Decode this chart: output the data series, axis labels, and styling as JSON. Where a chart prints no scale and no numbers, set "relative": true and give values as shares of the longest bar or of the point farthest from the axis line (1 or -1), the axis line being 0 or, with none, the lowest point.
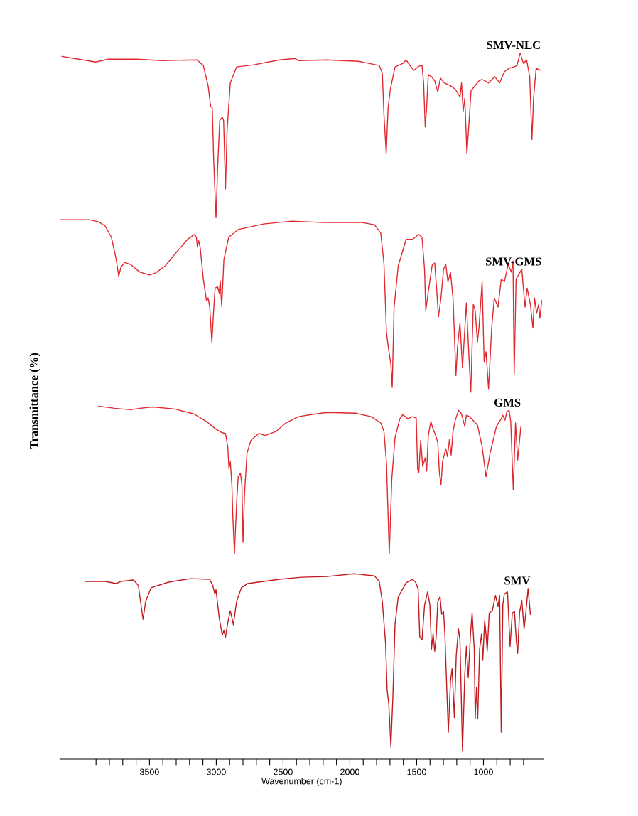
{
  "chart_data": {
    "type": "line",
    "relative": true,
    "xlabel": "Wavenumber (cm-1)",
    "ylabel": "Transmittance (%)",
    "xlim": [
      4170,
      550
    ],
    "xticks": [
      {
        "value": 3900,
        "label": null
      },
      {
        "value": 3800,
        "label": null
      },
      {
        "value": 3700,
        "label": null
      },
      {
        "value": 3600,
        "label": null
      },
      3500,
      {
        "value": 3400,
        "label": null
      },
      {
        "value": 3300,
        "label": null
      },
      {
        "value": 3200,
        "label": null
      },
      {
        "value": 3100,
        "label": null
      },
      3000,
      {
        "value": 2900,
        "label": null
      },
      {
        "value": 2800,
        "label": null
      },
      {
        "value": 2700,
        "label": null
      },
      {
        "value": 2600,
        "label": null
      },
      2500,
      {
        "value": 2400,
        "label": null
      },
      {
        "value": 2300,
        "label": null
      },
      {
        "value": 2200,
        "label": null
      },
      {
        "value": 2100,
        "label": null
      },
      2000,
      {
        "value": 1900,
        "label": null
      },
      {
        "value": 1800,
        "label": null
      },
      {
        "value": 1700,
        "label": null
      },
      {
        "value": 1600,
        "label": null
      },
      1500,
      {
        "value": 1400,
        "label": null
      },
      {
        "value": 1300,
        "label": null
      },
      {
        "value": 1200,
        "label": null
      },
      {
        "value": 1100,
        "label": null
      },
      1000,
      {
        "value": 900,
        "label": null
      },
      {
        "value": 800,
        "label": null
      },
      {
        "value": 700,
        "label": null
      }
    ],
    "tick_labels": "x",
    "grid": false,
    "legend": false,
    "marker": "none",
    "line_style": "solid",
    "series": [
      {
        "name": "SMV-NLC",
        "color": "#e0282e",
        "x": [
          4155,
          3998,
          3903,
          3808,
          3595,
          3405,
          3144,
          3097,
          3061,
          3042,
          3030,
          3019,
          3002,
          2990,
          2974,
          2955,
          2945,
          2931,
          2919,
          2895,
          2848,
          2717,
          2528,
          2409,
          2385,
          2172,
          1935,
          1780,
          1757,
          1745,
          1728,
          1714,
          1697,
          1662,
          1603,
          1579,
          1543,
          1520,
          1484,
          1460,
          1448,
          1436,
          1425,
          1413,
          1389,
          1365,
          1342,
          1323,
          1294,
          1247,
          1211,
          1176,
          1164,
          1152,
          1140,
          1124,
          1104,
          1093,
          1033,
          1010,
          962,
          915,
          879,
          844,
          808,
          772,
          749,
          725,
          701,
          677,
          654,
          637,
          625,
          606,
          571
        ],
        "values": [
          0.995,
          0.99,
          0.987,
          0.991,
          0.991,
          0.989,
          0.99,
          0.982,
          0.953,
          0.923,
          0.921,
          0.844,
          0.764,
          0.835,
          0.903,
          0.908,
          0.903,
          0.805,
          0.889,
          0.957,
          0.98,
          0.983,
          0.99,
          0.992,
          0.989,
          0.99,
          0.988,
          0.982,
          0.971,
          0.912,
          0.856,
          0.921,
          0.948,
          0.98,
          0.985,
          0.99,
          0.98,
          0.975,
          0.981,
          0.982,
          0.957,
          0.894,
          0.923,
          0.969,
          0.966,
          0.96,
          0.944,
          0.964,
          0.957,
          0.953,
          0.948,
          0.937,
          0.957,
          0.916,
          0.935,
          0.856,
          0.912,
          0.946,
          0.96,
          0.962,
          0.957,
          0.966,
          0.957,
          0.973,
          0.978,
          0.98,
          0.982,
          1.0,
          0.985,
          0.99,
          0.966,
          0.876,
          0.935,
          0.978,
          0.975
        ]
      },
      {
        "name": "SMV-GMS",
        "color": "#e0282e",
        "x": [
          4164,
          3951,
          3880,
          3832,
          3785,
          3749,
          3730,
          3714,
          3685,
          3642,
          3571,
          3500,
          3453,
          3382,
          3287,
          3215,
          3163,
          3149,
          3142,
          3132,
          3121,
          3097,
          3073,
          3061,
          3049,
          3033,
          3021,
          3009,
          2990,
          2978,
          2971,
          2959,
          2943,
          2907,
          2836,
          2646,
          2433,
          2196,
          1911,
          1816,
          1769,
          1745,
          1726,
          1709,
          1693,
          1683,
          1669,
          1638,
          1579,
          1531,
          1484,
          1460,
          1441,
          1432,
          1413,
          1384,
          1365,
          1349,
          1337,
          1318,
          1299,
          1282,
          1266,
          1247,
          1228,
          1206,
          1195,
          1176,
          1157,
          1128,
          1109,
          1095,
          1076,
          1062,
          1045,
          1033,
          1010,
          995,
          981,
          962,
          938,
          919,
          891,
          867,
          844,
          815,
          791,
          779,
          770,
          756,
          713,
          689,
          673,
          649,
          630,
          618,
          602,
          587,
          578,
          564
        ],
        "values": [
          0.761,
          0.761,
          0.758,
          0.752,
          0.736,
          0.704,
          0.68,
          0.693,
          0.7,
          0.697,
          0.686,
          0.682,
          0.685,
          0.695,
          0.717,
          0.733,
          0.74,
          0.736,
          0.723,
          0.731,
          0.722,
          0.676,
          0.645,
          0.649,
          0.636,
          0.585,
          0.627,
          0.663,
          0.665,
          0.656,
          0.674,
          0.637,
          0.704,
          0.736,
          0.747,
          0.755,
          0.759,
          0.757,
          0.757,
          0.754,
          0.742,
          0.699,
          0.599,
          0.574,
          0.554,
          0.521,
          0.636,
          0.695,
          0.733,
          0.733,
          0.74,
          0.736,
          0.69,
          0.631,
          0.658,
          0.696,
          0.699,
          0.658,
          0.622,
          0.649,
          0.69,
          0.697,
          0.672,
          0.686,
          0.649,
          0.538,
          0.577,
          0.613,
          0.549,
          0.642,
          0.567,
          0.514,
          0.64,
          0.631,
          0.586,
          0.608,
          0.672,
          0.558,
          0.572,
          0.519,
          0.608,
          0.649,
          0.636,
          0.676,
          0.672,
          0.697,
          0.686,
          0.702,
          0.54,
          0.676,
          0.69,
          0.636,
          0.663,
          0.64,
          0.606,
          0.649,
          0.627,
          0.64,
          0.62,
          0.645
        ]
      },
      {
        "name": "GMS",
        "color": "#e0282e",
        "x": [
          3880,
          3761,
          3642,
          3571,
          3476,
          3310,
          3168,
          3073,
          3002,
          2955,
          2931,
          2914,
          2905,
          2895,
          2883,
          2876,
          2864,
          2848,
          2836,
          2819,
          2808,
          2800,
          2789,
          2770,
          2741,
          2682,
          2634,
          2551,
          2480,
          2385,
          2290,
          2172,
          1958,
          1840,
          1769,
          1745,
          1726,
          1705,
          1686,
          1662,
          1626,
          1603,
          1567,
          1531,
          1503,
          1493,
          1484,
          1470,
          1455,
          1436,
          1425,
          1413,
          1394,
          1377,
          1361,
          1342,
          1330,
          1318,
          1306,
          1282,
          1270,
          1254,
          1242,
          1228,
          1211,
          1187,
          1164,
          1140,
          1128,
          1104,
          1045,
          1010,
          981,
          950,
          903,
          867,
          855,
          839,
          825,
          808,
          796,
          777,
          760,
          744,
          720
        ],
        "values": [
          0.494,
          0.491,
          0.489,
          0.491,
          0.493,
          0.49,
          0.483,
          0.472,
          0.461,
          0.456,
          0.455,
          0.436,
          0.405,
          0.415,
          0.381,
          0.336,
          0.283,
          0.354,
          0.393,
          0.398,
          0.381,
          0.299,
          0.367,
          0.427,
          0.445,
          0.455,
          0.452,
          0.458,
          0.47,
          0.479,
          0.482,
          0.485,
          0.484,
          0.479,
          0.47,
          0.458,
          0.413,
          0.283,
          0.39,
          0.449,
          0.476,
          0.482,
          0.476,
          0.479,
          0.477,
          0.404,
          0.399,
          0.445,
          0.408,
          0.42,
          0.401,
          0.452,
          0.472,
          0.461,
          0.454,
          0.442,
          0.399,
          0.381,
          0.415,
          0.433,
          0.422,
          0.447,
          0.424,
          0.458,
          0.474,
          0.488,
          0.483,
          0.465,
          0.481,
          0.479,
          0.467,
          0.436,
          0.393,
          0.427,
          0.465,
          0.476,
          0.481,
          0.474,
          0.486,
          0.488,
          0.472,
          0.374,
          0.47,
          0.417,
          0.465
        ]
      },
      {
        "name": "SMV",
        "color": "#c0191e",
        "x": [
          3979,
          3832,
          3749,
          3714,
          3619,
          3583,
          3567,
          3548,
          3529,
          3488,
          3358,
          3192,
          3049,
          3026,
          3011,
          3002,
          2978,
          2955,
          2943,
          2931,
          2914,
          2895,
          2883,
          2872,
          2848,
          2812,
          2765,
          2528,
          2362,
          2172,
          1970,
          1816,
          1780,
          1757,
          1733,
          1721,
          1709,
          1693,
          1678,
          1662,
          1638,
          1579,
          1531,
          1508,
          1489,
          1477,
          1460,
          1441,
          1418,
          1401,
          1389,
          1377,
          1365,
          1354,
          1342,
          1325,
          1313,
          1299,
          1289,
          1275,
          1263,
          1247,
          1235,
          1218,
          1204,
          1187,
          1176,
          1157,
          1140,
          1128,
          1114,
          1097,
          1085,
          1069,
          1062,
          1052,
          1043,
          1029,
          1014,
          1005,
          991,
          981,
          972,
          957,
          934,
          910,
          891,
          879,
          867,
          855,
          844,
          820,
          801,
          784,
          768,
          753,
          744,
          730,
          713,
          696,
          682,
          666,
          649
        ],
        "values": [
          0.243,
          0.243,
          0.24,
          0.243,
          0.245,
          0.237,
          0.214,
          0.189,
          0.214,
          0.234,
          0.242,
          0.247,
          0.246,
          0.237,
          0.225,
          0.231,
          0.191,
          0.166,
          0.173,
          0.163,
          0.184,
          0.201,
          0.191,
          0.181,
          0.214,
          0.234,
          0.24,
          0.246,
          0.249,
          0.25,
          0.254,
          0.251,
          0.243,
          0.214,
          0.155,
          0.087,
          0.068,
          0.006,
          0.078,
          0.182,
          0.221,
          0.241,
          0.246,
          0.242,
          0.232,
          0.164,
          0.159,
          0.209,
          0.228,
          0.209,
          0.146,
          0.168,
          0.143,
          0.164,
          0.214,
          0.221,
          0.196,
          0.2,
          0.168,
          0.091,
          0.027,
          0.1,
          0.118,
          0.048,
          0.137,
          0.175,
          0.159,
          0.0,
          0.109,
          0.15,
          0.105,
          0.168,
          0.198,
          0.146,
          0.046,
          0.091,
          0.046,
          0.146,
          0.168,
          0.13,
          0.187,
          0.168,
          0.143,
          0.198,
          0.201,
          0.223,
          0.207,
          0.223,
          0.027,
          0.209,
          0.225,
          0.228,
          0.15,
          0.198,
          0.2,
          0.155,
          0.14,
          0.198,
          0.216,
          0.175,
          0.2,
          0.233,
          0.196
        ]
      }
    ]
  }
}
